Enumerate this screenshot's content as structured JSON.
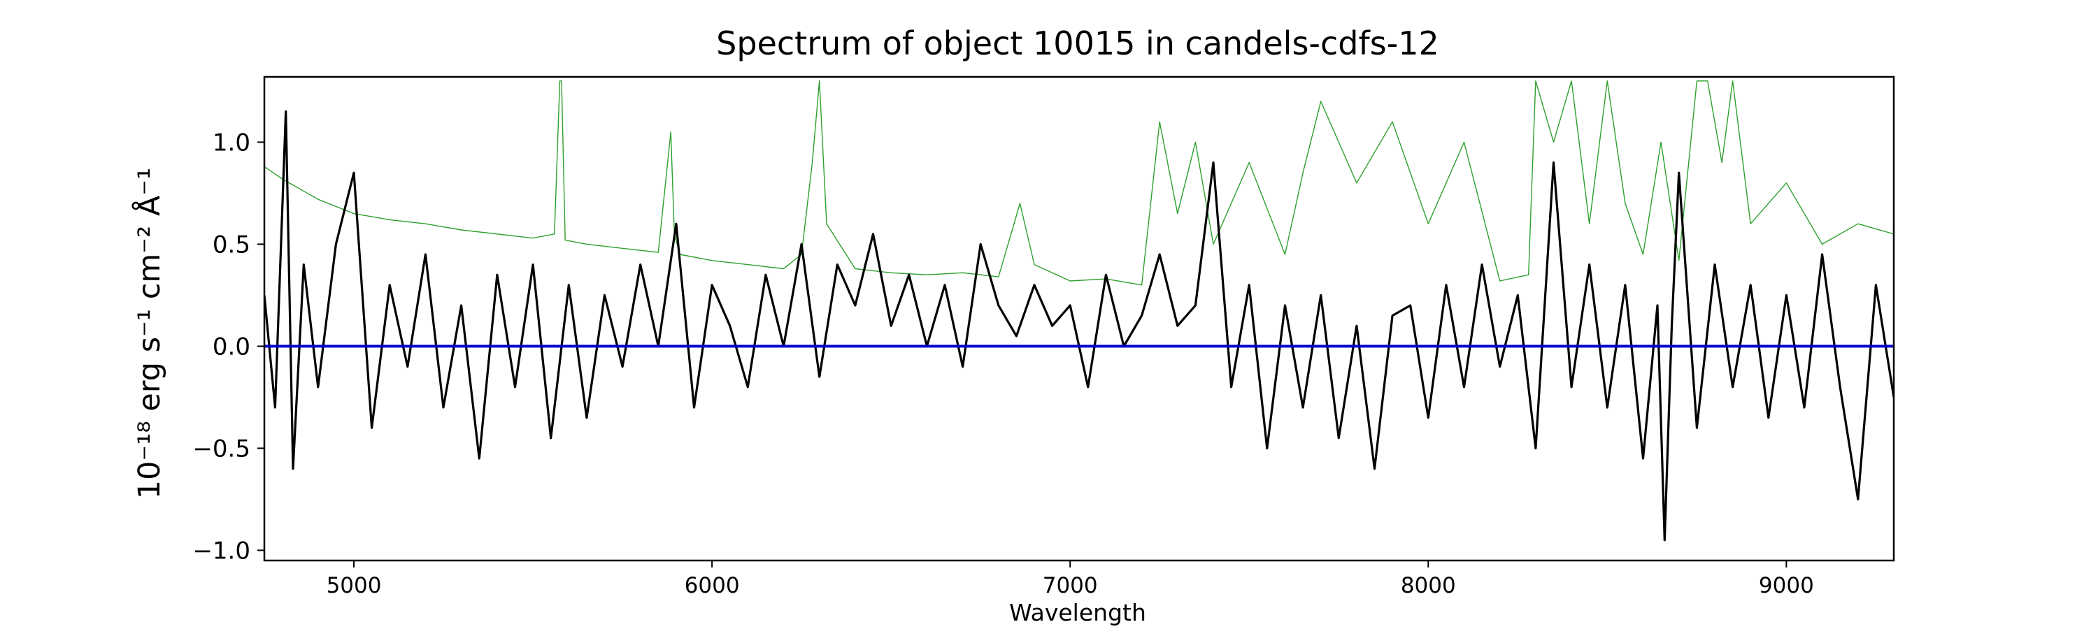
{
  "chart_data": {
    "type": "line",
    "title": "Spectrum of object 10015 in candels-cdfs-12",
    "xlabel": "Wavelength",
    "ylabel": "10⁻¹⁸ erg s⁻¹ cm⁻² Å⁻¹",
    "xlim": [
      4750,
      9300
    ],
    "ylim": [
      -1.05,
      1.32
    ],
    "xticks": [
      5000,
      6000,
      7000,
      8000,
      9000
    ],
    "yticks": [
      -1.0,
      -0.5,
      0.0,
      0.5,
      1.0
    ],
    "xtick_labels": [
      "5000",
      "6000",
      "7000",
      "8000",
      "9000"
    ],
    "ytick_labels": [
      "−1.0",
      "−0.5",
      "0.0",
      "0.5",
      "1.0"
    ],
    "grid": false,
    "legend": "none",
    "series": [
      {
        "color": "#2ca02c",
        "x": [
          4750,
          4800,
          4900,
          5000,
          5100,
          5200,
          5300,
          5400,
          5500,
          5560,
          5575,
          5580,
          5590,
          5650,
          5750,
          5850,
          5885,
          5895,
          5910,
          6000,
          6100,
          6200,
          6250,
          6280,
          6300,
          6320,
          6400,
          6500,
          6600,
          6700,
          6800,
          6860,
          6900,
          7000,
          7100,
          7200,
          7250,
          7300,
          7350,
          7400,
          7500,
          7600,
          7650,
          7700,
          7800,
          7900,
          8000,
          8100,
          8200,
          8280,
          8300,
          8350,
          8400,
          8450,
          8500,
          8550,
          8600,
          8650,
          8700,
          8750,
          8780,
          8820,
          8850,
          8900,
          9000,
          9100,
          9200,
          9300
        ],
        "y": [
          0.88,
          0.82,
          0.72,
          0.65,
          0.62,
          0.6,
          0.57,
          0.55,
          0.53,
          0.55,
          1.3,
          1.3,
          0.52,
          0.5,
          0.48,
          0.46,
          1.05,
          0.55,
          0.45,
          0.42,
          0.4,
          0.38,
          0.45,
          0.9,
          1.3,
          0.6,
          0.38,
          0.36,
          0.35,
          0.36,
          0.34,
          0.7,
          0.4,
          0.32,
          0.33,
          0.3,
          1.1,
          0.65,
          1.0,
          0.5,
          0.9,
          0.45,
          0.85,
          1.2,
          0.8,
          1.1,
          0.6,
          1.0,
          0.32,
          0.35,
          1.3,
          1.0,
          1.3,
          0.6,
          1.3,
          0.7,
          0.45,
          1.0,
          0.42,
          1.3,
          1.3,
          0.9,
          1.3,
          0.6,
          0.8,
          0.5,
          0.6,
          0.55
        ]
      },
      {
        "color": "#000000",
        "x": [
          4750,
          4780,
          4810,
          4830,
          4860,
          4900,
          4950,
          5000,
          5050,
          5100,
          5150,
          5200,
          5250,
          5300,
          5350,
          5400,
          5450,
          5500,
          5550,
          5600,
          5650,
          5700,
          5750,
          5800,
          5850,
          5900,
          5950,
          6000,
          6050,
          6100,
          6150,
          6200,
          6250,
          6300,
          6350,
          6400,
          6450,
          6500,
          6550,
          6600,
          6650,
          6700,
          6750,
          6800,
          6850,
          6900,
          6950,
          7000,
          7050,
          7100,
          7150,
          7200,
          7250,
          7300,
          7350,
          7400,
          7450,
          7500,
          7550,
          7600,
          7650,
          7700,
          7750,
          7800,
          7850,
          7900,
          7950,
          8000,
          8050,
          8100,
          8150,
          8200,
          8250,
          8300,
          8350,
          8400,
          8450,
          8500,
          8550,
          8600,
          8640,
          8660,
          8680,
          8700,
          8750,
          8800,
          8850,
          8900,
          8950,
          9000,
          9050,
          9100,
          9150,
          9200,
          9250,
          9300
        ],
        "y": [
          0.25,
          -0.3,
          1.15,
          -0.6,
          0.4,
          -0.2,
          0.5,
          0.85,
          -0.4,
          0.3,
          -0.1,
          0.45,
          -0.3,
          0.2,
          -0.55,
          0.35,
          -0.2,
          0.4,
          -0.45,
          0.3,
          -0.35,
          0.25,
          -0.1,
          0.4,
          0.0,
          0.6,
          -0.3,
          0.3,
          0.1,
          -0.2,
          0.35,
          0.0,
          0.5,
          -0.15,
          0.4,
          0.2,
          0.55,
          0.1,
          0.35,
          0.0,
          0.3,
          -0.1,
          0.5,
          0.2,
          0.05,
          0.3,
          0.1,
          0.2,
          -0.2,
          0.35,
          0.0,
          0.15,
          0.45,
          0.1,
          0.2,
          0.9,
          -0.2,
          0.3,
          -0.5,
          0.2,
          -0.3,
          0.25,
          -0.45,
          0.1,
          -0.6,
          0.15,
          0.2,
          -0.35,
          0.3,
          -0.2,
          0.4,
          -0.1,
          0.25,
          -0.5,
          0.9,
          -0.2,
          0.4,
          -0.3,
          0.3,
          -0.55,
          0.2,
          -0.95,
          0.1,
          0.85,
          -0.4,
          0.4,
          -0.2,
          0.3,
          -0.35,
          0.25,
          -0.3,
          0.45,
          -0.2,
          -0.75,
          0.3,
          -0.25
        ]
      },
      {
        "color": "#0000cc",
        "x": [
          4750,
          9300
        ],
        "y": [
          0.0,
          0.0
        ]
      }
    ]
  }
}
